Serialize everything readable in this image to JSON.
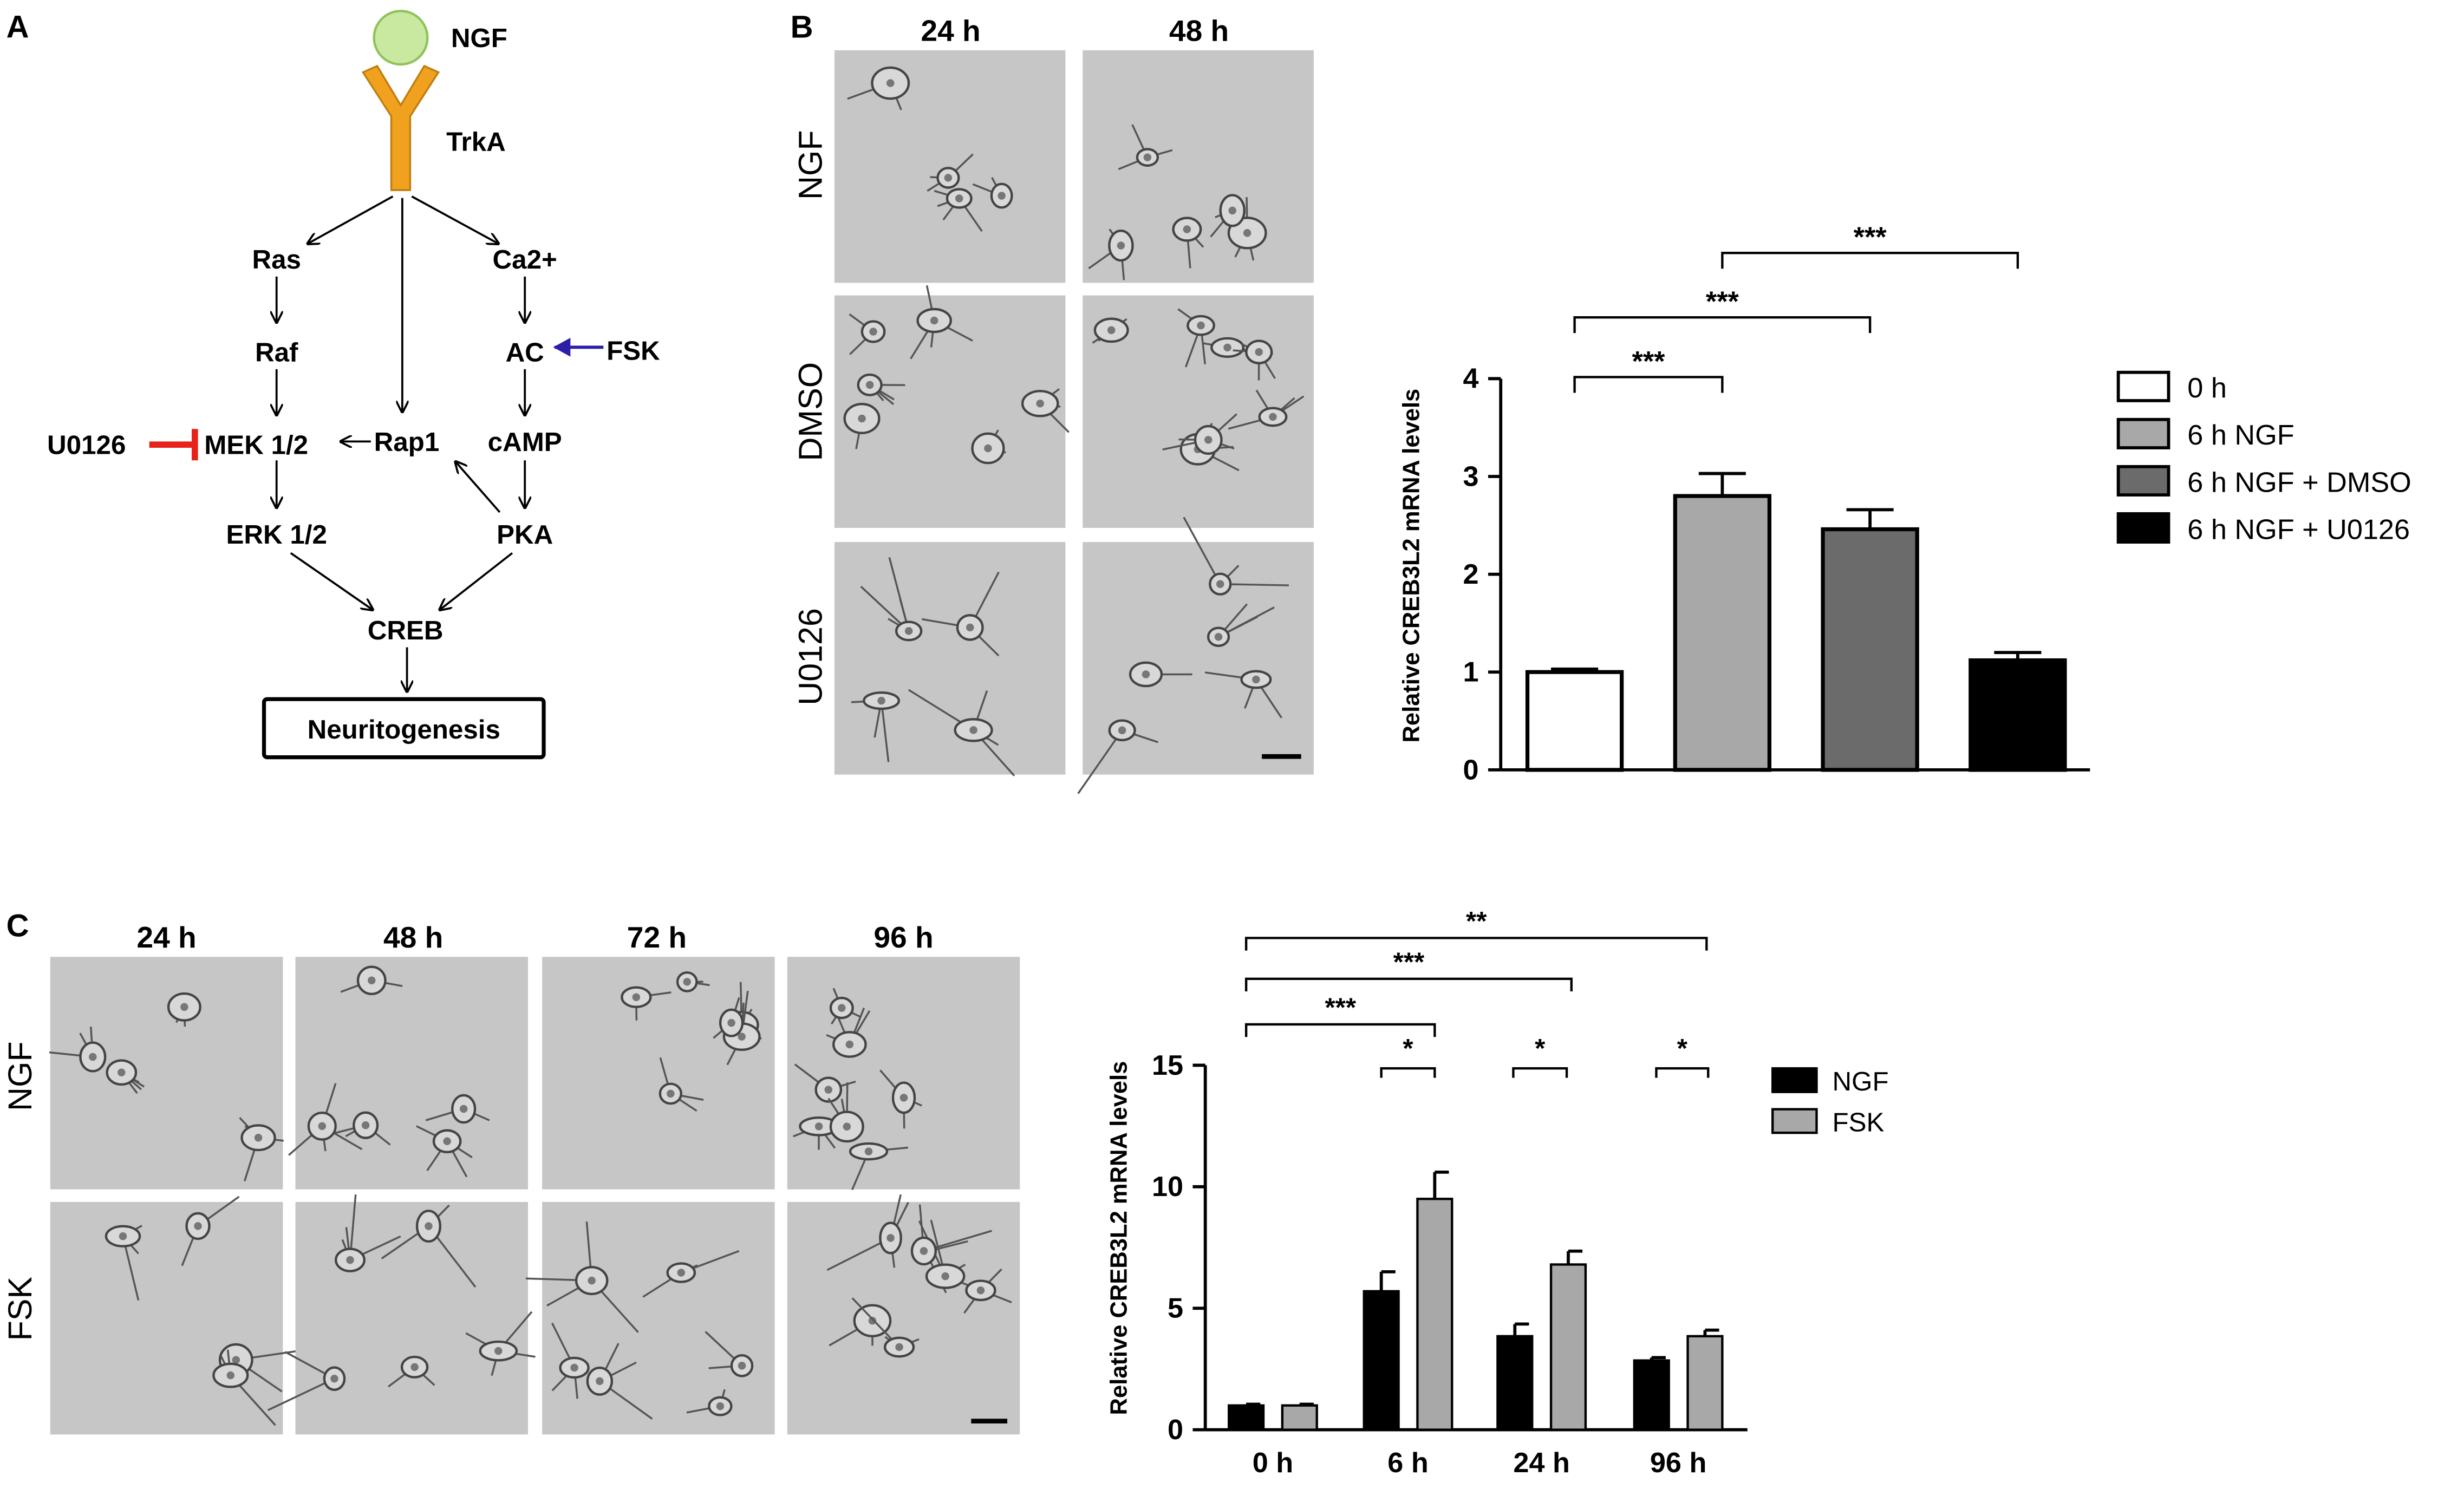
{
  "panels": {
    "a": "A",
    "b": "B",
    "c": "C"
  },
  "pathway": {
    "ngf": "NGF",
    "trka": "TrkA",
    "ras": "Ras",
    "raf": "Raf",
    "ca": "Ca2+",
    "ac": "AC",
    "fsk": "FSK",
    "u0126": "U0126",
    "mek": "MEK 1/2",
    "rap1": "Rap1",
    "camp": "cAMP",
    "erk": "ERK 1/2",
    "pka": "PKA",
    "creb": "CREB",
    "neurito": "Neuritogenesis"
  },
  "micro_b": {
    "cols": [
      "24 h",
      "48 h"
    ],
    "rows": [
      "NGF",
      "DMSO",
      "U0126"
    ]
  },
  "micro_c": {
    "cols": [
      "24 h",
      "48 h",
      "72 h",
      "96 h"
    ],
    "rows": [
      "NGF",
      "FSK"
    ]
  },
  "colors": {
    "white": "#ffffff",
    "light_gray": "#a8a8a8",
    "dark_gray": "#6b6b6b",
    "black": "#000000",
    "orange": "#f0a21e",
    "green": "#c9e8a0",
    "red": "#e8211b",
    "blue": "#2b1fa8",
    "micro_bg": "#c6c6c6"
  },
  "chart_data": [
    {
      "type": "bar",
      "ylabel": "Relative CREB3L2 mRNA levels",
      "ylim": [
        0,
        4
      ],
      "yticks": [
        "0",
        "1",
        "2",
        "3",
        "4"
      ],
      "categories": [
        "0 h",
        "6 h NGF",
        "6 h NGF + DMSO",
        "6 h NGF + U0126"
      ],
      "values": [
        1.0,
        2.8,
        2.46,
        1.12
      ],
      "errors": [
        0.03,
        0.23,
        0.2,
        0.08
      ],
      "legend": [
        "0 h",
        "6 h NGF",
        "6 h NGF + DMSO",
        "6 h NGF + U0126"
      ],
      "legend_position": "right",
      "significance": [
        {
          "from": 0,
          "to": 1,
          "label": "***"
        },
        {
          "from": 0,
          "to": 2,
          "label": "***"
        },
        {
          "from": 1,
          "to": 3,
          "label": "***"
        }
      ]
    },
    {
      "type": "bar",
      "ylabel": "Relative CREB3L2 mRNA levels",
      "ylim": [
        0,
        15
      ],
      "yticks": [
        "0",
        "5",
        "10",
        "15"
      ],
      "categories": [
        "0 h",
        "6 h",
        "24 h",
        "96 h"
      ],
      "series": [
        {
          "name": "NGF",
          "values": [
            1.0,
            5.7,
            3.85,
            2.85
          ],
          "errors": [
            0.05,
            0.8,
            0.5,
            0.12
          ]
        },
        {
          "name": "FSK",
          "values": [
            1.0,
            9.5,
            6.8,
            3.85
          ],
          "errors": [
            0.05,
            1.1,
            0.55,
            0.25
          ]
        }
      ],
      "legend_position": "right",
      "significance": [
        {
          "label": "**"
        },
        {
          "label": "***"
        },
        {
          "label": "***"
        },
        {
          "label": "*"
        },
        {
          "label": "*"
        },
        {
          "label": "*"
        }
      ]
    }
  ]
}
